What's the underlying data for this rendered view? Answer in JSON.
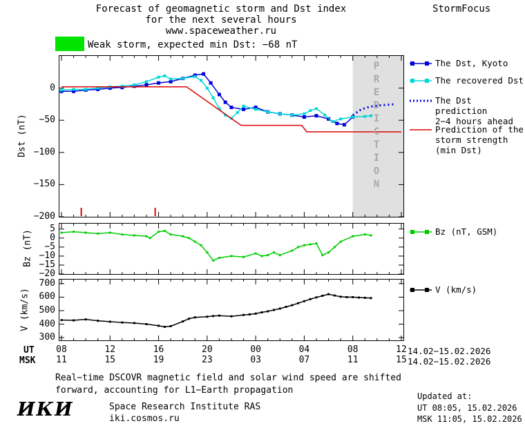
{
  "header": {
    "title_line1": "Forecast of geomagnetic storm and Dst index",
    "title_line2": "for the next several hours",
    "title_line3": "www.spaceweather.ru",
    "brand": "StormFocus"
  },
  "storm_banner": {
    "text": "Weak storm, expected min Dst: −68 nT",
    "swatch_color": "#00e400"
  },
  "legend": {
    "items": [
      {
        "key": "kyoto",
        "label": "The Dst, Kyoto",
        "color": "#0000dd",
        "style": "solid-marker"
      },
      {
        "key": "recovered",
        "label": "The recovered Dst",
        "color": "#00d8d8",
        "style": "solid-marker"
      },
      {
        "key": "prediction",
        "label": "The Dst prediction\n2−4 hours ahead",
        "color": "#0000dd",
        "style": "dotted"
      },
      {
        "key": "storm",
        "label": "Prediction of the\nstorm strength\n(min Dst)",
        "color": "#dd0000",
        "style": "solid"
      },
      {
        "key": "bz",
        "label": "Bz (nT, GSM)",
        "color": "#00cc00",
        "style": "solid-marker"
      },
      {
        "key": "v",
        "label": "V (km/s)",
        "color": "#000000",
        "style": "solid-marker"
      }
    ]
  },
  "axis": {
    "ut_label": "UT",
    "msk_label": "MSK",
    "tick_hours": [
      0,
      4,
      8,
      12,
      16,
      20,
      24,
      28
    ],
    "ut_ticks": [
      "08",
      "12",
      "16",
      "20",
      "00",
      "04",
      "08",
      "12"
    ],
    "msk_ticks": [
      "11",
      "15",
      "19",
      "23",
      "03",
      "07",
      "11",
      "15"
    ],
    "date_range_ut": "14.02−15.02.2026",
    "date_range_msk": "14.02−15.02.2026"
  },
  "footer_note": {
    "line1": "Real−time DSCOVR magnetic field and solar wind speed are shifted",
    "line2": "forward, accounting for L1−Earth propagation"
  },
  "credits": {
    "logo": "ИКИ",
    "institute": "Space Research Institute RAS",
    "site": "iki.cosmos.ru"
  },
  "updated": {
    "label": "Updated at:",
    "ut": "UT  08:05, 15.02.2026",
    "msk": "MSK 11:05, 15.02.2026"
  },
  "chart_data": [
    {
      "id": "dst",
      "type": "line",
      "ylabel": "Dst (nT)",
      "ylim": [
        -200,
        50
      ],
      "yticks": [
        0,
        -50,
        -100,
        -150,
        -200
      ],
      "xlim": [
        0,
        28
      ],
      "x_unit": "hours from 08:00 UT 14.02.2026",
      "band": {
        "from": 24,
        "to": 28,
        "color": "#e0e0e0",
        "label": "PREDICTION"
      },
      "event_marks": {
        "color": "#dd0000",
        "x": [
          1.63,
          7.72
        ]
      },
      "series": [
        {
          "name": "The Dst, Kyoto",
          "color": "#0000dd",
          "width": 1.5,
          "marker": 5,
          "x": [
            0,
            1,
            2,
            3,
            4,
            5,
            6,
            7,
            8,
            9,
            10,
            11,
            11.7,
            12.3,
            13,
            13.5,
            14,
            15,
            16,
            17,
            18,
            19,
            20,
            21,
            22,
            22.7,
            23.3,
            24
          ],
          "y": [
            -5,
            -5,
            -3,
            -2,
            0,
            1,
            3,
            5,
            8,
            10,
            15,
            20,
            22,
            8,
            -10,
            -22,
            -30,
            -33,
            -30,
            -37,
            -40,
            -42,
            -45,
            -43,
            -48,
            -55,
            -57,
            -45
          ]
        },
        {
          "name": "The recovered Dst",
          "color": "#00d8d8",
          "width": 1.5,
          "marker": 4,
          "x": [
            0,
            1,
            2,
            3,
            4,
            5,
            6,
            7,
            8,
            8.5,
            9,
            10,
            11,
            11.5,
            12,
            12.5,
            13,
            13.5,
            14,
            14.5,
            15,
            16,
            17,
            18,
            19,
            20,
            20.5,
            21,
            21.7,
            22.3,
            23,
            24,
            25,
            25.5
          ],
          "y": [
            -3,
            -2,
            -2,
            0,
            2,
            3,
            5,
            10,
            17,
            19,
            14,
            15,
            18,
            12,
            0,
            -15,
            -32,
            -42,
            -47,
            -38,
            -28,
            -33,
            -37,
            -40,
            -42,
            -40,
            -35,
            -32,
            -42,
            -52,
            -48,
            -45,
            -44,
            -43
          ]
        },
        {
          "name": "The Dst prediction 2−4 hours ahead",
          "color": "#0000dd",
          "width": 3,
          "dash": "2,4",
          "x": [
            24,
            24.7,
            25.4,
            26.1,
            26.8,
            27.5
          ],
          "y": [
            -42,
            -33,
            -29,
            -27,
            -26,
            -25
          ]
        },
        {
          "name": "Prediction of the storm strength (min Dst)",
          "color": "#dd0000",
          "width": 1.5,
          "x": [
            0,
            10.3,
            14.8,
            19.8,
            20.2,
            28
          ],
          "y": [
            2,
            2,
            -58,
            -58,
            -68,
            -68
          ]
        }
      ]
    },
    {
      "id": "bz",
      "type": "line",
      "ylabel": "Bz (nT)",
      "ylim": [
        -20,
        8
      ],
      "yticks": [
        5,
        0,
        -5,
        -10,
        -15,
        -20
      ],
      "xlim": [
        0,
        28
      ],
      "series": [
        {
          "name": "Bz (nT, GSM)",
          "color": "#00cc00",
          "width": 1.5,
          "marker": 3,
          "x": [
            0,
            1,
            2,
            3,
            4,
            5,
            6,
            7,
            7.3,
            8,
            8.5,
            9,
            10,
            10.5,
            11,
            11.5,
            12,
            12.5,
            13,
            14,
            15,
            16,
            16.5,
            17,
            17.5,
            18,
            19,
            19.5,
            20,
            20.5,
            21,
            21.5,
            22,
            22.5,
            23,
            24,
            25,
            25.5
          ],
          "y": [
            3,
            3.5,
            3,
            2.5,
            3,
            2,
            1.5,
            1,
            0,
            3.5,
            4,
            2,
            1,
            0,
            -2,
            -4,
            -8,
            -12.5,
            -11,
            -10,
            -10.5,
            -8.5,
            -10,
            -9.5,
            -8,
            -9.5,
            -7,
            -5,
            -4,
            -3.5,
            -3,
            -9.5,
            -8,
            -5,
            -2,
            1,
            2,
            1.5
          ]
        }
      ]
    },
    {
      "id": "v",
      "type": "line",
      "ylabel": "V (km/s)",
      "ylim": [
        280,
        730
      ],
      "yticks": [
        700,
        600,
        500,
        400,
        300
      ],
      "xlim": [
        0,
        28
      ],
      "series": [
        {
          "name": "V (km/s)",
          "color": "#000000",
          "width": 1.5,
          "marker": 3,
          "x": [
            0,
            1,
            2,
            3,
            4,
            5,
            6,
            7,
            8,
            8.5,
            9,
            10,
            10.5,
            11,
            12,
            12.5,
            13,
            14,
            15,
            15.5,
            16,
            16.5,
            17,
            17.5,
            18,
            18.5,
            19,
            19.5,
            20,
            20.5,
            21,
            21.5,
            22,
            22.5,
            23,
            23.5,
            24,
            24.5,
            25,
            25.5
          ],
          "y": [
            430,
            428,
            435,
            425,
            418,
            412,
            408,
            400,
            388,
            380,
            385,
            420,
            440,
            450,
            455,
            460,
            463,
            458,
            468,
            472,
            478,
            487,
            495,
            505,
            515,
            528,
            540,
            555,
            570,
            585,
            598,
            610,
            622,
            612,
            603,
            600,
            600,
            597,
            595,
            593
          ]
        }
      ]
    }
  ]
}
